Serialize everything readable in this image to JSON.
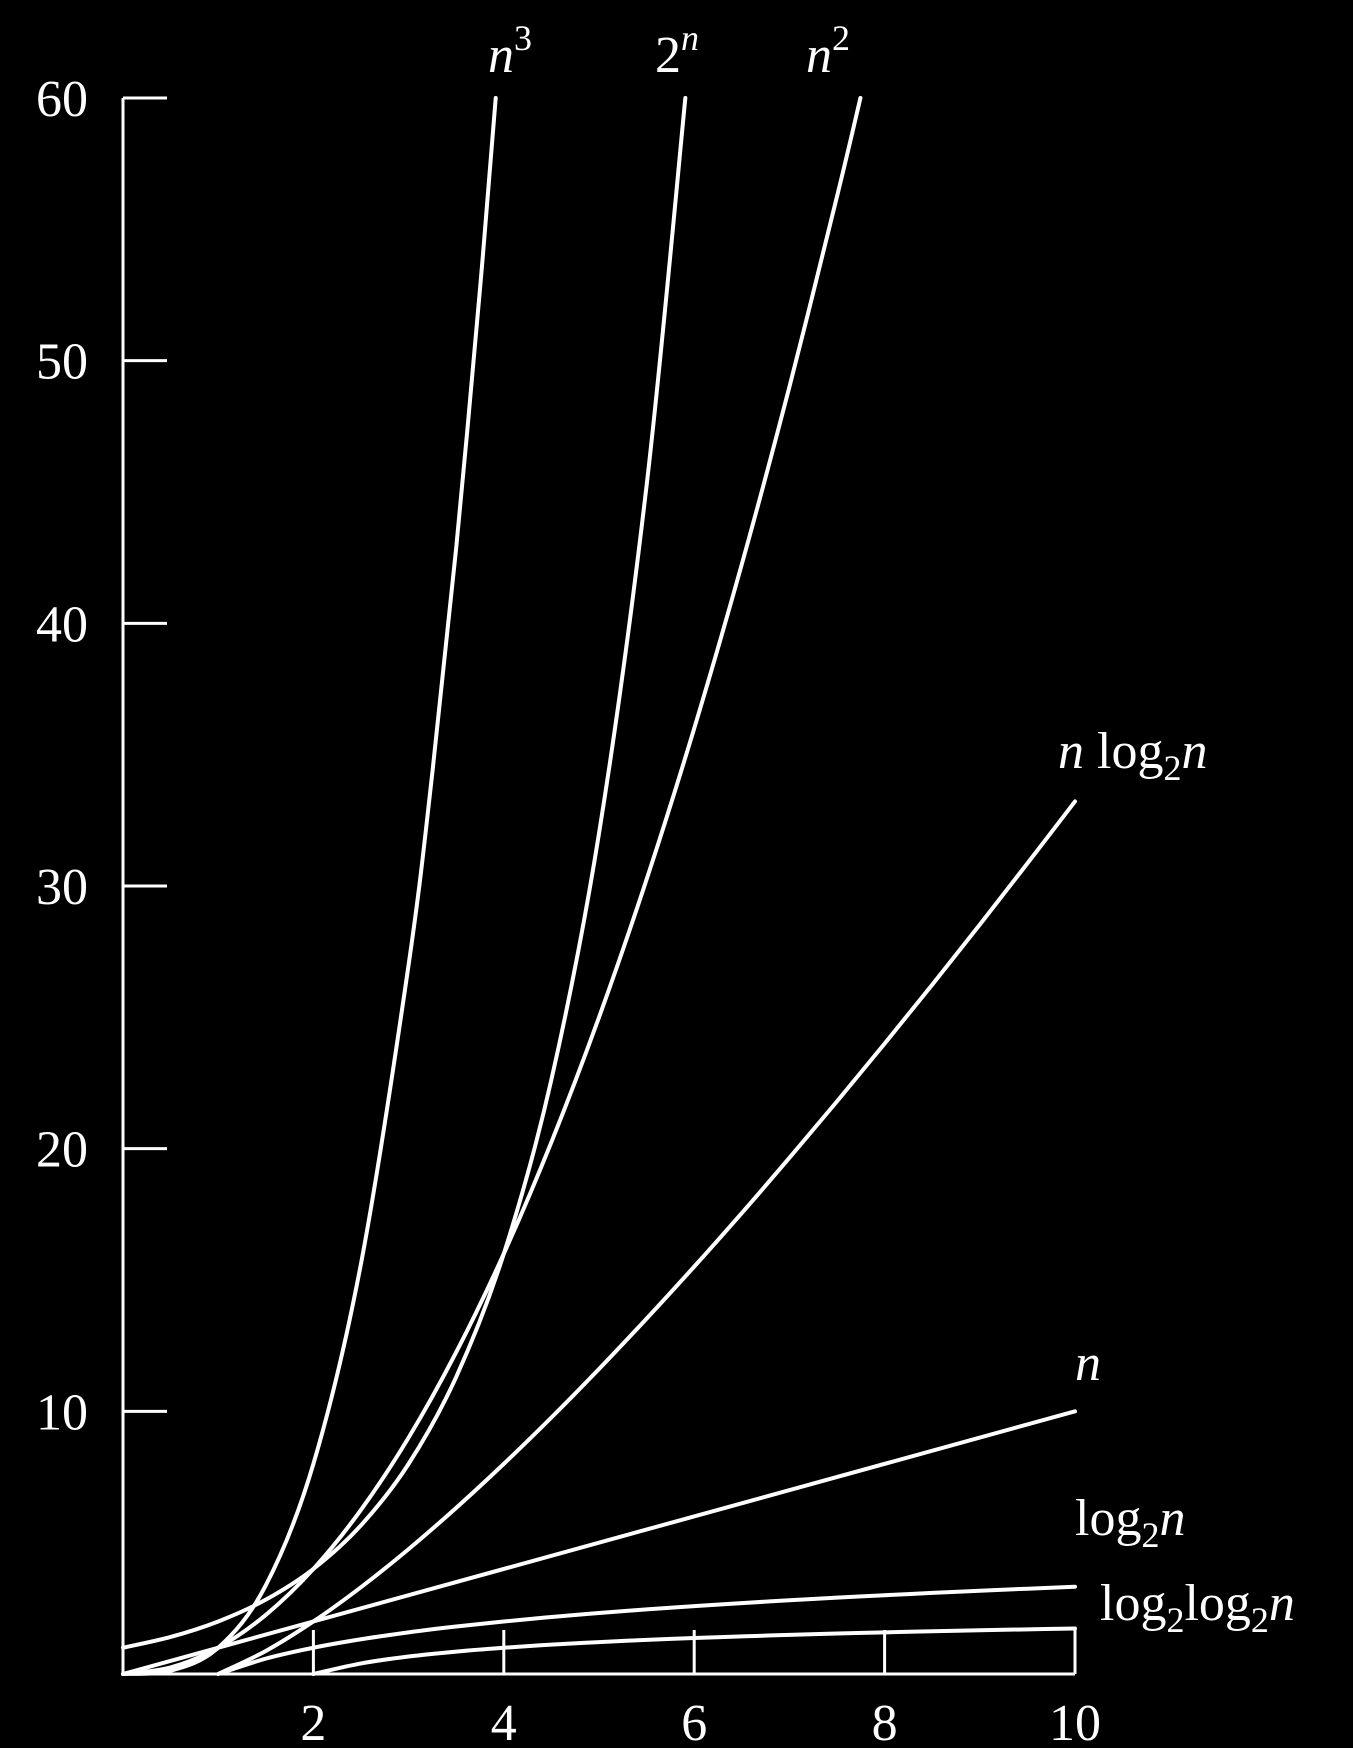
{
  "chart_data": {
    "type": "line",
    "title": "",
    "xlabel": "",
    "ylabel": "",
    "xlim": [
      0,
      10
    ],
    "ylim": [
      0,
      60
    ],
    "grid": false,
    "background_color": "#000000",
    "line_color": "#ffffff",
    "x_ticks": [
      2,
      4,
      6,
      8,
      10
    ],
    "x_tick_labels": [
      "2",
      "4",
      "6",
      "8",
      "10"
    ],
    "y_ticks": [
      10,
      20,
      30,
      40,
      50,
      60
    ],
    "y_tick_labels": [
      "10",
      "20",
      "30",
      "40",
      "50",
      "60"
    ],
    "series": [
      {
        "name": "n3",
        "label": {
          "base": "n",
          "sup": "3"
        },
        "x": [
          0,
          0.5,
          1,
          1.5,
          2,
          2.5,
          3,
          3.25,
          3.5,
          3.75,
          3.915
        ],
        "y": [
          0,
          0.125,
          1,
          3.375,
          8,
          15.625,
          27,
          34.33,
          42.875,
          52.73,
          60
        ]
      },
      {
        "name": "2n",
        "label": {
          "base": "2",
          "sup": "n"
        },
        "x": [
          0,
          0.5,
          1,
          1.5,
          2,
          2.5,
          3,
          3.5,
          4,
          4.5,
          5,
          5.5,
          5.907
        ],
        "y": [
          1,
          1.41,
          2,
          2.83,
          4,
          5.66,
          8,
          11.31,
          16,
          22.63,
          32,
          45.25,
          60
        ]
      },
      {
        "name": "n2",
        "label": {
          "base": "n",
          "sup": "2"
        },
        "x": [
          0,
          0.5,
          1,
          1.5,
          2,
          2.5,
          3,
          3.5,
          4,
          4.5,
          5,
          5.5,
          6,
          6.5,
          7,
          7.5,
          7.746
        ],
        "y": [
          0,
          0.25,
          1,
          2.25,
          4,
          6.25,
          9,
          12.25,
          16,
          20.25,
          25,
          30.25,
          36,
          42.25,
          49,
          56.25,
          60
        ]
      },
      {
        "name": "n log2n",
        "label": {
          "base": "n log",
          "sub": "2",
          "tail": "n"
        },
        "x": [
          1,
          1.5,
          2,
          2.5,
          3,
          3.5,
          4,
          4.5,
          5,
          5.5,
          6,
          6.5,
          7,
          7.5,
          8,
          8.5,
          9,
          9.5,
          10
        ],
        "y": [
          0,
          0.877,
          2,
          3.305,
          4.755,
          6.326,
          8,
          9.765,
          11.61,
          13.53,
          15.51,
          17.55,
          19.65,
          21.8,
          24,
          26.24,
          28.53,
          30.86,
          33.22
        ]
      },
      {
        "name": "n",
        "label": {
          "base": "n"
        },
        "x": [
          0,
          10
        ],
        "y": [
          0,
          10
        ]
      },
      {
        "name": "log2n",
        "label": {
          "base": "log",
          "sub": "2",
          "tail": "n"
        },
        "x": [
          1,
          1.5,
          2,
          2.5,
          3,
          3.5,
          4,
          4.5,
          5,
          5.5,
          6,
          6.5,
          7,
          7.5,
          8,
          8.5,
          9,
          9.5,
          10
        ],
        "y": [
          0,
          0.585,
          1,
          1.322,
          1.585,
          1.807,
          2,
          2.17,
          2.322,
          2.459,
          2.585,
          2.7,
          2.807,
          2.907,
          3,
          3.087,
          3.17,
          3.248,
          3.322
        ]
      },
      {
        "name": "log2log2n",
        "label": {
          "base": "log",
          "sub": "2",
          "mid": "log",
          "sub2": "2",
          "tail": "n"
        },
        "x": [
          2,
          2.5,
          3,
          3.5,
          4,
          4.5,
          5,
          5.5,
          6,
          6.5,
          7,
          7.5,
          8,
          8.5,
          9,
          9.5,
          10
        ],
        "y": [
          0,
          0.403,
          0.665,
          0.853,
          1,
          1.118,
          1.215,
          1.298,
          1.37,
          1.433,
          1.489,
          1.54,
          1.585,
          1.626,
          1.664,
          1.7,
          1.732
        ]
      }
    ]
  }
}
